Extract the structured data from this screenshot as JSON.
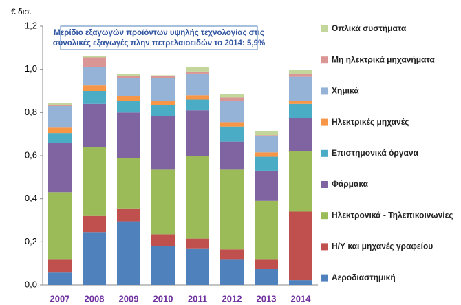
{
  "chart_data": {
    "type": "stacked-bar",
    "y_label": "€ δισ.",
    "annotation": [
      "Μερίδιο εξαγωγών προϊόντων υψηλής τεχνολογίας στις",
      "συνολικές εξαγωγές πλην πετρελαιοειδών το 2014: 5,9%"
    ],
    "categories": [
      "2007",
      "2008",
      "2009",
      "2010",
      "2011",
      "2012",
      "2013",
      "2014"
    ],
    "series": [
      {
        "name": "Αεροδιαστημική",
        "color": "#4f81bd",
        "values": [
          0.06,
          0.245,
          0.295,
          0.18,
          0.17,
          0.12,
          0.075,
          0.022
        ]
      },
      {
        "name": "Η/Υ και μηχανές γραφείου",
        "color": "#c0504d",
        "values": [
          0.06,
          0.075,
          0.06,
          0.055,
          0.045,
          0.045,
          0.045,
          0.318
        ]
      },
      {
        "name": "Ηλεκτρονικά - Τηλεπικοινωνίες",
        "color": "#9bbb59",
        "values": [
          0.31,
          0.32,
          0.235,
          0.3,
          0.385,
          0.37,
          0.27,
          0.28
        ]
      },
      {
        "name": "Φάρμακα",
        "color": "#8064a2",
        "values": [
          0.23,
          0.2,
          0.21,
          0.25,
          0.21,
          0.13,
          0.14,
          0.155
        ]
      },
      {
        "name": "Επιστημονικά όργανα",
        "color": "#4bacc6",
        "values": [
          0.045,
          0.06,
          0.055,
          0.05,
          0.05,
          0.07,
          0.065,
          0.065
        ]
      },
      {
        "name": "Ηλεκτρικές μηχανές",
        "color": "#f79646",
        "values": [
          0.025,
          0.025,
          0.02,
          0.02,
          0.02,
          0.02,
          0.02,
          0.015
        ]
      },
      {
        "name": "Χημικά",
        "color": "#95b3d7",
        "values": [
          0.1,
          0.085,
          0.085,
          0.105,
          0.1,
          0.1,
          0.075,
          0.11
        ]
      },
      {
        "name": "Μη ηλεκτρικά μηχανήματα",
        "color": "#d99694",
        "values": [
          0.005,
          0.045,
          0.01,
          0.008,
          0.01,
          0.015,
          0.005,
          0.015
        ]
      },
      {
        "name": "Οπλικά συστήματα",
        "color": "#c3d69b",
        "values": [
          0.01,
          0.005,
          0.008,
          0.004,
          0.02,
          0.015,
          0.02,
          0.017
        ]
      }
    ],
    "ylim": [
      0,
      1.2
    ],
    "yticks": [
      {
        "value": 0,
        "label": "0,0"
      },
      {
        "value": 0.2,
        "label": "0,2"
      },
      {
        "value": 0.4,
        "label": "0,4"
      },
      {
        "value": 0.6,
        "label": "0,6"
      },
      {
        "value": 0.8,
        "label": "0,8"
      },
      {
        "value": 1,
        "label": "1,0"
      },
      {
        "value": 1.2,
        "label": "1,2"
      }
    ],
    "grid": false,
    "legend": "right"
  }
}
